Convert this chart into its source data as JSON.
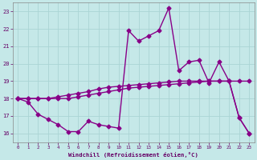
{
  "background_color": "#c5e8e8",
  "grid_color": "#aad4d4",
  "line_color": "#880088",
  "xlabel": "Windchill (Refroidissement éolien,°C)",
  "xlabel_color": "#660066",
  "tick_color": "#660066",
  "xlim": [
    -0.5,
    23.5
  ],
  "ylim": [
    15.5,
    23.5
  ],
  "yticks": [
    16,
    17,
    18,
    19,
    20,
    21,
    22,
    23
  ],
  "xticks": [
    0,
    1,
    2,
    3,
    4,
    5,
    6,
    7,
    8,
    9,
    10,
    11,
    12,
    13,
    14,
    15,
    16,
    17,
    18,
    19,
    20,
    21,
    22,
    23
  ],
  "series1_x": [
    0,
    1,
    2,
    3,
    4,
    5,
    6,
    7,
    8,
    9,
    10,
    11,
    12,
    13,
    14,
    15,
    16,
    17,
    18,
    19,
    20,
    21,
    22,
    23
  ],
  "series1_y": [
    18.0,
    18.0,
    18.0,
    18.0,
    18.1,
    18.2,
    18.3,
    18.4,
    18.55,
    18.65,
    18.7,
    18.75,
    18.8,
    18.85,
    18.9,
    18.95,
    19.0,
    19.0,
    19.0,
    19.0,
    19.0,
    19.0,
    19.0,
    19.0
  ],
  "series2_x": [
    0,
    1,
    2,
    3,
    4,
    5,
    6,
    7,
    8,
    9,
    10,
    11,
    12,
    13,
    14,
    15,
    16,
    17,
    18,
    19,
    20,
    21,
    22,
    23
  ],
  "series2_y": [
    18.0,
    17.8,
    17.1,
    16.8,
    16.5,
    16.1,
    16.1,
    16.7,
    16.5,
    16.4,
    16.3,
    21.9,
    21.3,
    21.6,
    21.9,
    23.2,
    19.6,
    20.1,
    20.2,
    18.9,
    20.1,
    19.0,
    16.9,
    16.0
  ],
  "series3_x": [
    0,
    1,
    2,
    3,
    4,
    5,
    6,
    7,
    8,
    9,
    10,
    11,
    12,
    13,
    14,
    15,
    16,
    17,
    18,
    19,
    20,
    21,
    22,
    23
  ],
  "series3_y": [
    18.0,
    18.0,
    18.0,
    18.0,
    18.0,
    18.0,
    18.1,
    18.2,
    18.3,
    18.4,
    18.5,
    18.6,
    18.65,
    18.7,
    18.75,
    18.8,
    18.85,
    18.9,
    18.95,
    19.0,
    19.0,
    19.0,
    16.9,
    16.0
  ]
}
